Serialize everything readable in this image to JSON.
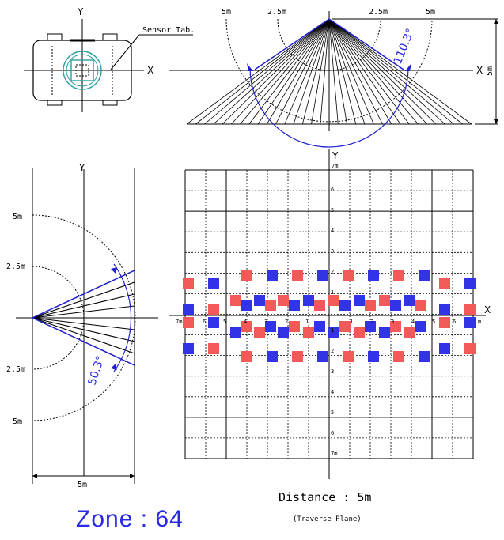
{
  "sensor_view": {
    "axis_y": "Y",
    "axis_x": "X",
    "callout": "Sensor Tab."
  },
  "top_fov": {
    "labels_top": [
      "5m",
      "2.5m",
      "2.5m",
      "5m"
    ],
    "axis_x": "X",
    "height_label": "5m",
    "angle": "110.3°"
  },
  "side_fov": {
    "axis_y": "Y",
    "labels_left": [
      "5m",
      "2.5m",
      "2.5m",
      "5m"
    ],
    "width_label": "5m",
    "angle": "50.3°"
  },
  "grid": {
    "axis_y": "Y",
    "axis_x": "X",
    "y_unit": "7m",
    "x_unit_left": "7m",
    "x_unit_right": "m",
    "y_ticks_top": [
      "6",
      "5",
      "4",
      "3",
      "2",
      "1"
    ],
    "y_ticks_bottom": [
      "1",
      "2",
      "3",
      "4",
      "5",
      "6",
      "7m"
    ],
    "x_ticks_left": [
      "6",
      "5",
      "4",
      "3",
      "2",
      "1"
    ],
    "x_ticks_right": [
      "1",
      "2",
      "3",
      "4",
      "5",
      "6"
    ]
  },
  "colors": {
    "red": "#f25a5a",
    "blue": "#3232e6",
    "line_blue": "#2020d0"
  },
  "caption": {
    "distance": "Distance : 5m",
    "plane": "(Traverse Plane)",
    "zone": "Zone : 64"
  }
}
